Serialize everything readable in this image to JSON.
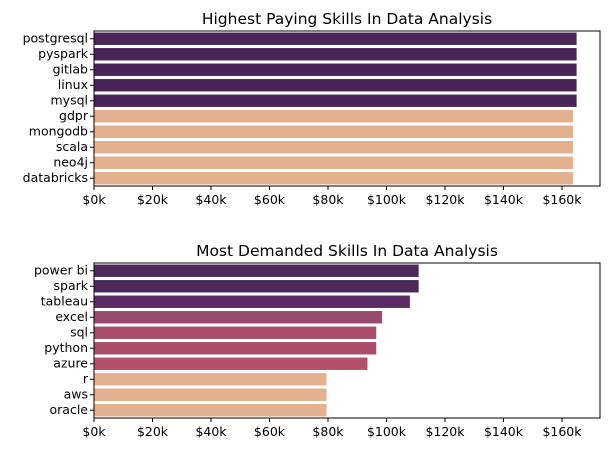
{
  "chart_data": [
    {
      "type": "bar",
      "orientation": "horizontal",
      "title": "Highest Paying Skills In Data Analysis",
      "xlabel": "",
      "ylabel": "",
      "xlim": [
        0,
        173000
      ],
      "xticks": [
        0,
        20000,
        40000,
        60000,
        80000,
        100000,
        120000,
        140000,
        160000
      ],
      "xtick_labels": [
        "$0k",
        "$20k",
        "$40k",
        "$60k",
        "$80k",
        "$100k",
        "$120k",
        "$140k",
        "$160k"
      ],
      "grid": false,
      "legend": false,
      "categories": [
        "postgresql",
        "pyspark",
        "gitlab",
        "linux",
        "mysql",
        "gdpr",
        "mongodb",
        "scala",
        "neo4j",
        "databricks"
      ],
      "values": [
        165000,
        165000,
        165000,
        165000,
        165000,
        163782,
        163782,
        163782,
        163782,
        163782
      ],
      "colors": [
        "#4a2559",
        "#4a2559",
        "#4a2559",
        "#4a2559",
        "#4a2559",
        "#e3b18d",
        "#e3b18d",
        "#e3b18d",
        "#e3b18d",
        "#e3b18d"
      ]
    },
    {
      "type": "bar",
      "orientation": "horizontal",
      "title": "Most Demanded Skills In Data Analysis",
      "xlabel": "",
      "ylabel": "",
      "xlim": [
        0,
        173000
      ],
      "xticks": [
        0,
        20000,
        40000,
        60000,
        80000,
        100000,
        120000,
        140000,
        160000
      ],
      "xtick_labels": [
        "$0k",
        "$20k",
        "$40k",
        "$60k",
        "$80k",
        "$100k",
        "$120k",
        "$140k",
        "$160k"
      ],
      "grid": false,
      "legend": false,
      "categories": [
        "power bi",
        "spark",
        "tableau",
        "excel",
        "sql",
        "python",
        "azure",
        "r",
        "aws",
        "oracle"
      ],
      "values": [
        111000,
        111000,
        108000,
        98500,
        96500,
        96500,
        93500,
        79500,
        79500,
        79500
      ],
      "colors": [
        "#4b2a5a",
        "#4b2a5a",
        "#5b2c63",
        "#9a4a6c",
        "#a94d6b",
        "#a94d6b",
        "#b55168",
        "#e3b18d",
        "#e3b18d",
        "#e3b18d"
      ]
    }
  ]
}
